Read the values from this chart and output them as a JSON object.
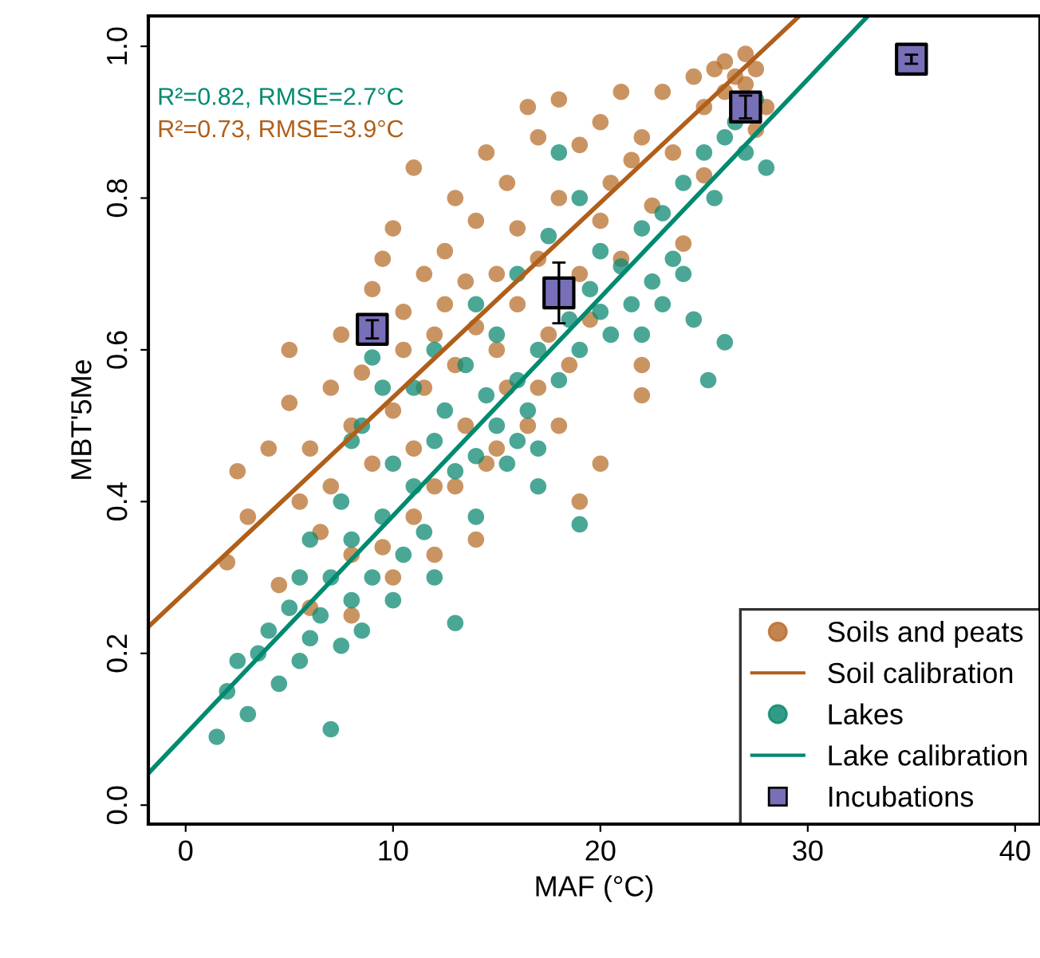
{
  "chart_data": {
    "type": "scatter",
    "xlabel": "MAF (°C)",
    "ylabel": "MBT'5Me",
    "xlim": [
      -1.8,
      41.2
    ],
    "ylim": [
      -0.025,
      1.04
    ],
    "xticks": [
      0,
      10,
      20,
      30,
      40
    ],
    "yticks": [
      {
        "value": 0,
        "label": "0.0"
      },
      {
        "value": 0.2,
        "label": "0.2"
      },
      {
        "value": 0.4,
        "label": "0.4"
      },
      {
        "value": 0.6,
        "label": "0.6"
      },
      {
        "value": 0.8,
        "label": "0.8"
      },
      {
        "value": 1,
        "label": "1.0"
      }
    ],
    "grid": false,
    "legend": "bottom right",
    "annotations": [
      "R²=0.82, RMSE=2.7°C",
      "R²=0.73, RMSE=3.9°C"
    ],
    "series": [
      {
        "name": "Soils and peats",
        "marker": "circle",
        "color": "#b8702e",
        "x": [
          2.5,
          3,
          2,
          4,
          4.5,
          5,
          5.5,
          5,
          6,
          6.5,
          7,
          7,
          7.5,
          8,
          8,
          8.5,
          9,
          9,
          9.5,
          9.5,
          10,
          10,
          10.5,
          10.5,
          11,
          11,
          11.5,
          11.5,
          12,
          12,
          12.5,
          12.5,
          13,
          13,
          13.5,
          13.5,
          14,
          14,
          14.5,
          14.5,
          15,
          15,
          15.5,
          15.5,
          16,
          16,
          16.5,
          16.5,
          17,
          17,
          17.5,
          18,
          18,
          18.5,
          19,
          19,
          19.5,
          20,
          20,
          20.5,
          21,
          21,
          21.5,
          22,
          22,
          22.5,
          23,
          23.5,
          24,
          24.5,
          25,
          25,
          25.5,
          26,
          26,
          26.5,
          27,
          27,
          27.5,
          28,
          27.5,
          20,
          18,
          19,
          14,
          13,
          12,
          10,
          8,
          6,
          11,
          15,
          17,
          22
        ],
        "values": [
          0.44,
          0.38,
          0.32,
          0.47,
          0.29,
          0.53,
          0.4,
          0.6,
          0.47,
          0.36,
          0.42,
          0.55,
          0.62,
          0.5,
          0.33,
          0.57,
          0.45,
          0.68,
          0.72,
          0.34,
          0.76,
          0.52,
          0.6,
          0.65,
          0.84,
          0.47,
          0.55,
          0.7,
          0.62,
          0.42,
          0.73,
          0.66,
          0.8,
          0.58,
          0.5,
          0.69,
          0.77,
          0.63,
          0.86,
          0.45,
          0.7,
          0.6,
          0.82,
          0.55,
          0.76,
          0.66,
          0.92,
          0.5,
          0.88,
          0.72,
          0.62,
          0.93,
          0.8,
          0.58,
          0.87,
          0.7,
          0.64,
          0.9,
          0.77,
          0.82,
          0.94,
          0.72,
          0.85,
          0.88,
          0.54,
          0.79,
          0.94,
          0.86,
          0.74,
          0.96,
          0.92,
          0.83,
          0.97,
          0.98,
          0.94,
          0.96,
          0.99,
          0.95,
          0.97,
          0.92,
          0.89,
          0.45,
          0.5,
          0.4,
          0.35,
          0.42,
          0.33,
          0.3,
          0.25,
          0.26,
          0.38,
          0.47,
          0.55,
          0.58
        ]
      },
      {
        "name": "Soil calibration",
        "type": "line",
        "marker": "none",
        "color": "#b05f1a",
        "x": [
          -1.8,
          29.6
        ],
        "values": [
          0.235,
          1.04
        ]
      },
      {
        "name": "Lakes",
        "marker": "circle",
        "color": "#0e8a72",
        "x": [
          1.5,
          2,
          2.5,
          3,
          3.5,
          4,
          4.5,
          5,
          5.5,
          5.5,
          6,
          6,
          6.5,
          7,
          7,
          7.5,
          7.5,
          8,
          8,
          8.5,
          8.5,
          9,
          9,
          9.5,
          10,
          10,
          10.5,
          11,
          11,
          11.5,
          12,
          12,
          12.5,
          13,
          13,
          13.5,
          14,
          14,
          14.5,
          15,
          15,
          15.5,
          16,
          16,
          16.5,
          17,
          17,
          17.5,
          18,
          18,
          18.5,
          19,
          19,
          19.5,
          20,
          20,
          20.5,
          21,
          21.5,
          22,
          22,
          22.5,
          23,
          23,
          23.5,
          24,
          24,
          24.5,
          25,
          25.2,
          25.5,
          26,
          26,
          26.5,
          27,
          27.5,
          28,
          12,
          14,
          16,
          17,
          19,
          9.5,
          8
        ],
        "values": [
          0.09,
          0.15,
          0.19,
          0.12,
          0.2,
          0.23,
          0.16,
          0.26,
          0.19,
          0.3,
          0.22,
          0.35,
          0.25,
          0.1,
          0.3,
          0.21,
          0.4,
          0.27,
          0.35,
          0.23,
          0.5,
          0.3,
          0.59,
          0.38,
          0.27,
          0.45,
          0.33,
          0.42,
          0.55,
          0.36,
          0.48,
          0.3,
          0.52,
          0.24,
          0.44,
          0.58,
          0.46,
          0.38,
          0.54,
          0.5,
          0.62,
          0.45,
          0.56,
          0.7,
          0.52,
          0.6,
          0.47,
          0.75,
          0.56,
          0.86,
          0.64,
          0.6,
          0.8,
          0.68,
          0.65,
          0.73,
          0.62,
          0.71,
          0.66,
          0.76,
          0.62,
          0.69,
          0.78,
          0.66,
          0.72,
          0.82,
          0.7,
          0.64,
          0.86,
          0.56,
          0.8,
          0.61,
          0.88,
          0.9,
          0.86,
          0.93,
          0.84,
          0.6,
          0.66,
          0.48,
          0.42,
          0.37,
          0.55,
          0.48
        ]
      },
      {
        "name": "Lake calibration",
        "type": "line",
        "marker": "none",
        "color": "#008a70",
        "x": [
          -1.8,
          32.9
        ],
        "values": [
          0.042,
          1.04
        ]
      },
      {
        "name": "Incubations",
        "marker": "square",
        "color": "#7770b8",
        "x": [
          9,
          18,
          27,
          35
        ],
        "values": [
          0.627,
          0.675,
          0.92,
          0.983
        ],
        "errors": [
          0.012,
          0.04,
          0.015,
          0.006
        ]
      }
    ]
  }
}
